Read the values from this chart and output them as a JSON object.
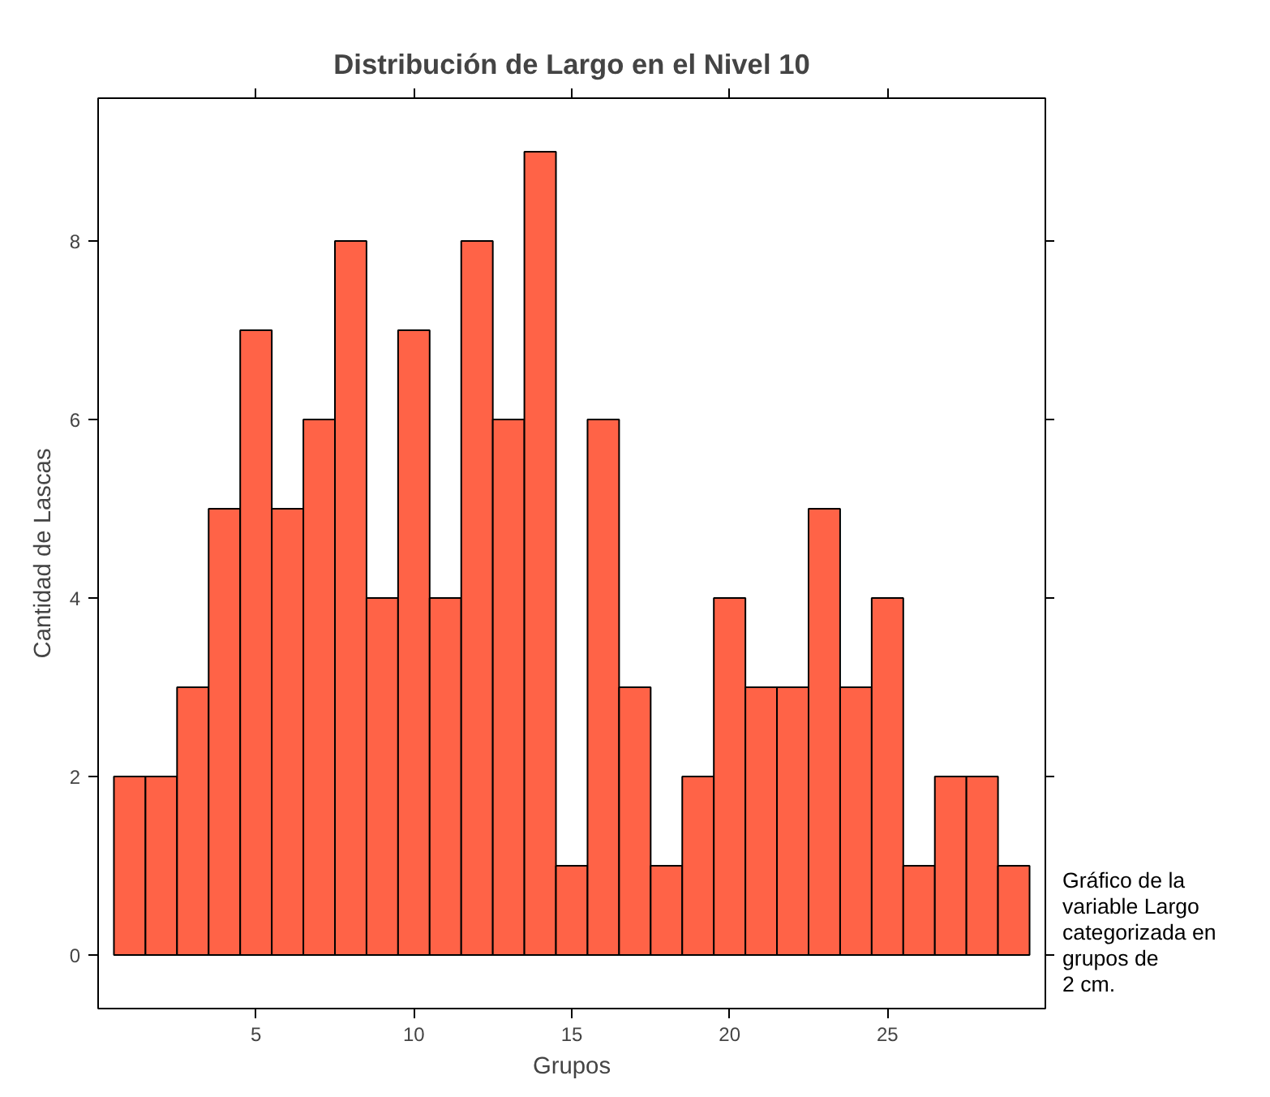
{
  "chart_data": {
    "type": "histogram",
    "title": "Distribución de Largo en el Nivel 10",
    "xlabel": "Grupos",
    "ylabel": "Cantidad de Lascas",
    "bins": [
      0.5,
      1.5,
      2.5,
      3.5,
      4.5,
      5.5,
      6.5,
      7.5,
      8.5,
      9.5,
      10.5,
      11.5,
      12.5,
      13.5,
      14.5,
      15.5,
      16.5,
      17.5,
      18.5,
      19.5,
      20.5,
      21.5,
      22.5,
      23.5,
      24.5,
      25.5,
      26.5,
      27.5,
      28.5,
      29.5
    ],
    "values": [
      2,
      2,
      3,
      5,
      7,
      5,
      6,
      8,
      4,
      7,
      4,
      8,
      6,
      9,
      1,
      6,
      3,
      1,
      2,
      4,
      3,
      3,
      5,
      3,
      4,
      1,
      2,
      2,
      1
    ],
    "color": "#ff6347",
    "xlim": [
      0,
      30
    ],
    "xticks": [
      5,
      10,
      15,
      20,
      25
    ],
    "ylim": [
      -0.6,
      9.6
    ],
    "yticks": [
      0,
      2,
      4,
      6,
      8
    ],
    "grid": false,
    "annotations": [
      "Gráfico de la\nvariable Largo\ncategorizada en\ngrupos de\n2 cm."
    ]
  }
}
